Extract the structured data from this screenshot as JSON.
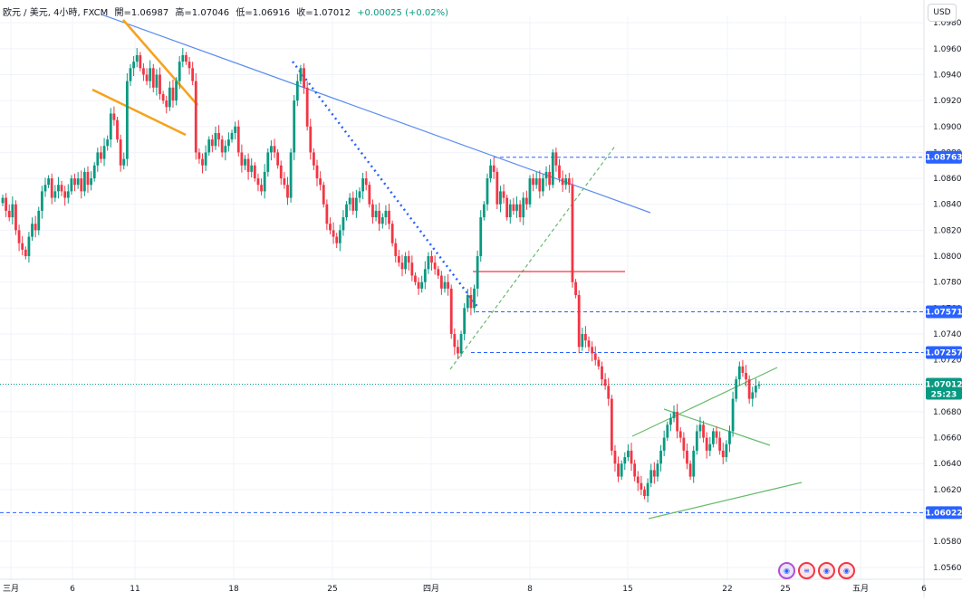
{
  "header": {
    "symbol": "欧元 / 美元, 4小時, FXCM",
    "open": "開=1.06987",
    "high": "高=1.07046",
    "low": "低=1.06916",
    "close": "收=1.07012",
    "change": "+0.00025 (+0.02%)"
  },
  "currency_button": "USD",
  "colors": {
    "up": "#089981",
    "down": "#f23645",
    "trend": "#2962ff",
    "orange": "#f7a21b",
    "green_line": "#66bb6a",
    "red_line": "#f23645"
  },
  "event_icons": [
    "calendar-event-icon",
    "us-flag-event-icon",
    "eu-flag-event-icon",
    "calendar-event-icon"
  ],
  "chart_data": {
    "type": "candlestick",
    "symbol": "EURUSD",
    "timeframe": "4h",
    "y_range": [
      1.0555,
      1.0985
    ],
    "y_ticks": [
      "1.09800",
      "1.09600",
      "1.09400",
      "1.09200",
      "1.09000",
      "1.08800",
      "1.08600",
      "1.08400",
      "1.08200",
      "1.08000",
      "1.07800",
      "1.07600",
      "1.07400",
      "1.07200",
      "1.07000",
      "1.06800",
      "1.06600",
      "1.06400",
      "1.06200",
      "1.06000",
      "1.05800",
      "1.05600"
    ],
    "x_ticks": [
      "三月",
      "6",
      "11",
      "18",
      "25",
      "四月",
      "8",
      "15",
      "22",
      "25",
      "五月",
      "6"
    ],
    "price_tags": [
      {
        "label": "1.08763",
        "value": 1.08763,
        "color": "#2962ff"
      },
      {
        "label": "1.07571",
        "value": 1.07571,
        "color": "#2962ff"
      },
      {
        "label": "1.07257",
        "value": 1.07257,
        "color": "#2962ff"
      },
      {
        "label": "1.07012",
        "sub": "25:23",
        "value": 1.07012,
        "color": "#089981"
      },
      {
        "label": "1.06022",
        "value": 1.06022,
        "color": "#2962ff"
      }
    ],
    "horizontal_levels": [
      1.08763,
      1.07571,
      1.07257,
      1.06022
    ],
    "current_price": 1.07012,
    "closes": [
      1.0845,
      1.0835,
      1.083,
      1.084,
      1.082,
      1.081,
      1.0805,
      1.08,
      1.0815,
      1.0825,
      1.082,
      1.0835,
      1.085,
      1.0855,
      1.086,
      1.0845,
      1.085,
      1.0855,
      1.085,
      1.0845,
      1.085,
      1.086,
      1.0855,
      1.086,
      1.085,
      1.0865,
      1.0855,
      1.086,
      1.087,
      1.088,
      1.0875,
      1.0885,
      1.089,
      1.091,
      1.0905,
      1.089,
      1.087,
      1.0875,
      1.0935,
      1.0945,
      1.095,
      1.0955,
      1.0945,
      1.094,
      1.0935,
      1.0945,
      1.093,
      1.094,
      1.0925,
      1.092,
      1.0915,
      1.093,
      1.092,
      1.0935,
      1.095,
      1.0955,
      1.095,
      1.0945,
      1.0935,
      1.088,
      1.0875,
      1.087,
      1.088,
      1.089,
      1.0885,
      1.0895,
      1.089,
      1.088,
      1.0885,
      1.089,
      1.0895,
      1.09,
      1.088,
      1.087,
      1.0875,
      1.0865,
      1.087,
      1.086,
      1.0855,
      1.085,
      1.0865,
      1.088,
      1.0885,
      1.088,
      1.087,
      1.086,
      1.0855,
      1.0845,
      1.088,
      1.092,
      1.0935,
      1.0945,
      1.093,
      1.09,
      1.088,
      1.087,
      1.086,
      1.0855,
      1.084,
      1.0825,
      1.082,
      1.0815,
      1.081,
      1.082,
      1.083,
      1.084,
      1.0845,
      1.0835,
      1.0845,
      1.085,
      1.086,
      1.0855,
      1.084,
      1.083,
      1.0835,
      1.0825,
      1.083,
      1.0835,
      1.0825,
      1.081,
      1.08,
      1.0795,
      1.079,
      1.08,
      1.0795,
      1.0785,
      1.078,
      1.0775,
      1.078,
      1.079,
      1.08,
      1.0795,
      1.079,
      1.0785,
      1.0775,
      1.078,
      1.0775,
      1.074,
      1.073,
      1.0725,
      1.074,
      1.076,
      1.077,
      1.076,
      1.0775,
      1.08,
      1.083,
      1.084,
      1.086,
      1.087,
      1.0865,
      1.084,
      1.085,
      1.0845,
      1.083,
      1.084,
      1.0835,
      1.084,
      1.083,
      1.0845,
      1.084,
      1.086,
      1.0855,
      1.086,
      1.085,
      1.086,
      1.0865,
      1.0855,
      1.088,
      1.087,
      1.086,
      1.0855,
      1.086,
      1.0855,
      1.078,
      1.077,
      1.073,
      1.074,
      1.0735,
      1.073,
      1.0725,
      1.072,
      1.0715,
      1.0705,
      1.07,
      1.069,
      1.065,
      1.064,
      1.063,
      1.064,
      1.0645,
      1.065,
      1.064,
      1.063,
      1.0625,
      1.062,
      1.0615,
      1.0625,
      1.0635,
      1.063,
      1.064,
      1.065,
      1.066,
      1.067,
      1.0675,
      1.068,
      1.0665,
      1.066,
      1.065,
      1.064,
      1.063,
      1.065,
      1.0665,
      1.067,
      1.066,
      1.065,
      1.0655,
      1.0665,
      1.066,
      1.065,
      1.0645,
      1.0655,
      1.0665,
      1.069,
      1.0705,
      1.0715,
      1.071,
      1.0705,
      1.069,
      1.0695,
      1.07,
      1.0701
    ]
  }
}
